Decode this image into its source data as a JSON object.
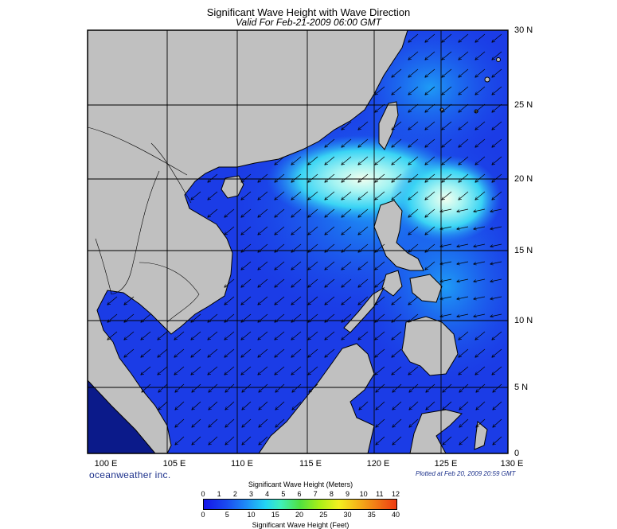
{
  "title": "Significant Wave Height with Wave Direction",
  "subtitle": "Valid For Feb-21-2009 06:00 GMT",
  "lat_labels": [
    "30 N",
    "25 N",
    "20 N",
    "15 N",
    "10 N",
    "5 N",
    "0"
  ],
  "lon_labels": [
    "100 E",
    "105 E",
    "110 E",
    "115 E",
    "120 E",
    "125 E",
    "130 E"
  ],
  "brand": "oceanweather inc.",
  "plotted": "Plotted at Feb 20, 2009 20:59 GMT",
  "scale": {
    "title_meters": "Significant Wave Height (Meters)",
    "title_feet": "Significant Wave Height (Feet)",
    "meter_ticks": [
      "0",
      "1",
      "2",
      "3",
      "4",
      "5",
      "6",
      "7",
      "8",
      "9",
      "10",
      "11",
      "12"
    ],
    "feet_ticks": [
      "0",
      "5",
      "10",
      "15",
      "20",
      "25",
      "30",
      "35",
      "40"
    ]
  },
  "map": {
    "lat_range": [
      0,
      30
    ],
    "lon_range": [
      99,
      130
    ],
    "land_color": "#c0c0c0",
    "ocean_color": "#1b38e6",
    "arrow_direction": "toward southwest",
    "max_wave_region": "Luzon Strait (~20 N, 119 E)"
  }
}
